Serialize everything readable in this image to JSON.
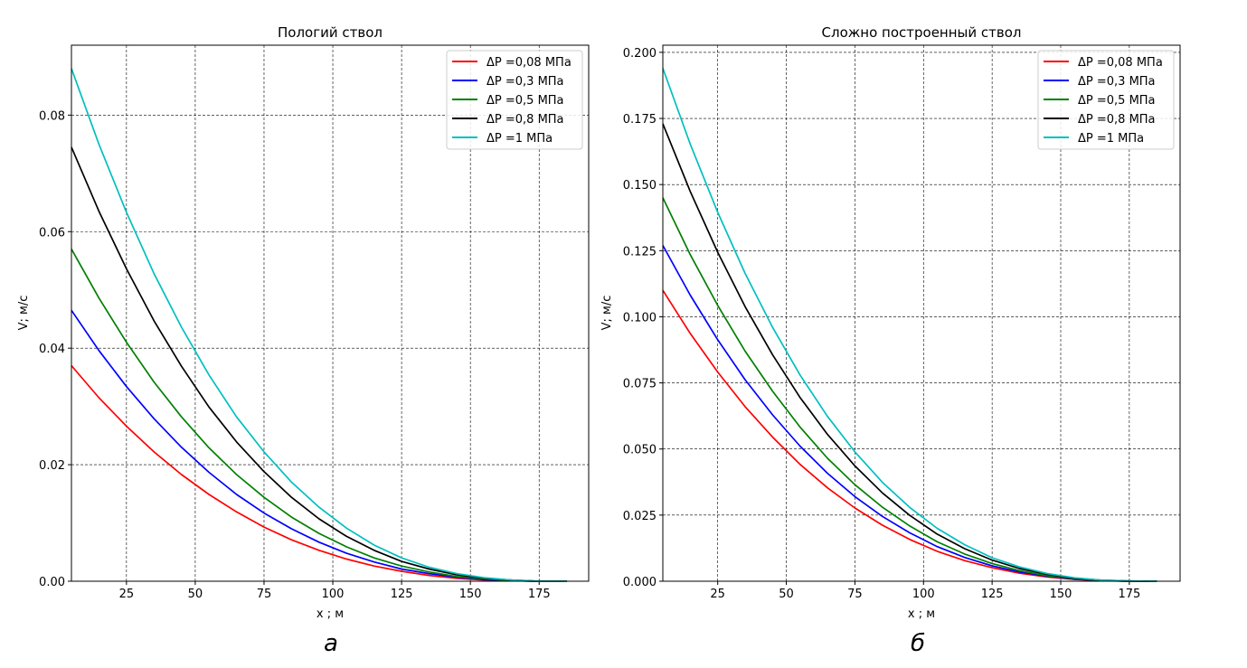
{
  "chart_data": [
    {
      "type": "line",
      "title": "Пологий ствол",
      "xlabel": "x ; м",
      "ylabel": "V; м/с",
      "caption": "а",
      "xlim": [
        5,
        193
      ],
      "ylim": [
        0,
        0.092
      ],
      "xticks": [
        25,
        50,
        75,
        100,
        125,
        150,
        175
      ],
      "xtick_labels": [
        "25",
        "50",
        "75",
        "100",
        "125",
        "150",
        "175"
      ],
      "yticks": [
        0,
        0.02,
        0.04,
        0.06,
        0.08
      ],
      "ytick_labels": [
        "0.00",
        "0.02",
        "0.04",
        "0.06",
        "0.08"
      ],
      "grid": true,
      "legend_position": "top-right",
      "x": [
        5,
        15,
        25,
        35,
        45,
        55,
        65,
        75,
        85,
        95,
        105,
        115,
        125,
        135,
        145,
        155,
        165,
        175,
        185
      ],
      "series": [
        {
          "name": "ΔP =0,08 МПа",
          "color": "#ff0000",
          "values": [
            0.037,
            0.0315,
            0.0266,
            0.0222,
            0.0183,
            0.0149,
            0.0119,
            0.0093,
            0.0071,
            0.0053,
            0.0038,
            0.0026,
            0.0017,
            0.001,
            0.0005,
            0.0002,
            0.0001,
            0,
            0
          ]
        },
        {
          "name": "ΔP =0,3 МПа",
          "color": "#0000ff",
          "values": [
            0.0465,
            0.0396,
            0.0334,
            0.0279,
            0.023,
            0.0187,
            0.0149,
            0.0117,
            0.009,
            0.0067,
            0.0048,
            0.0033,
            0.0021,
            0.0013,
            0.0007,
            0.0003,
            0.0001,
            0,
            0
          ]
        },
        {
          "name": "ΔP =0,5 МПа",
          "color": "#008000",
          "values": [
            0.057,
            0.0486,
            0.041,
            0.0342,
            0.0282,
            0.0229,
            0.0183,
            0.0144,
            0.011,
            0.0082,
            0.0059,
            0.004,
            0.0026,
            0.0016,
            0.0008,
            0.0004,
            0.0001,
            0,
            0
          ]
        },
        {
          "name": "ΔP =0,8 МПа",
          "color": "#000000",
          "values": [
            0.0745,
            0.0635,
            0.0536,
            0.0447,
            0.0369,
            0.0299,
            0.0239,
            0.0188,
            0.0144,
            0.0107,
            0.0077,
            0.0053,
            0.0034,
            0.0021,
            0.0011,
            0.0005,
            0.0002,
            0,
            0
          ]
        },
        {
          "name": "ΔP =1 МПа",
          "color": "#00bfbf",
          "values": [
            0.088,
            0.075,
            0.0633,
            0.0528,
            0.0436,
            0.0354,
            0.0282,
            0.0222,
            0.017,
            0.0127,
            0.0091,
            0.0062,
            0.004,
            0.0024,
            0.0013,
            0.0006,
            0.0002,
            0,
            0
          ]
        }
      ]
    },
    {
      "type": "line",
      "title": "Сложно построенный ствол",
      "xlabel": "x ; м",
      "ylabel": "V; м/с",
      "caption": "б",
      "xlim": [
        5,
        193.5
      ],
      "ylim": [
        0,
        0.2027
      ],
      "xticks": [
        25,
        50,
        75,
        100,
        125,
        150,
        175
      ],
      "xtick_labels": [
        "25",
        "50",
        "75",
        "100",
        "125",
        "150",
        "175"
      ],
      "yticks": [
        0,
        0.025,
        0.05,
        0.075,
        0.1,
        0.125,
        0.15,
        0.175,
        0.2
      ],
      "ytick_labels": [
        "0.000",
        "0.025",
        "0.050",
        "0.075",
        "0.100",
        "0.125",
        "0.150",
        "0.175",
        "0.200"
      ],
      "grid": true,
      "legend_position": "top-right",
      "x": [
        5,
        15,
        25,
        35,
        45,
        55,
        65,
        75,
        85,
        95,
        105,
        115,
        125,
        135,
        145,
        155,
        165,
        175,
        185
      ],
      "series": [
        {
          "name": "ΔP =0,08 МПа",
          "color": "#ff0000",
          "values": [
            0.11,
            0.0937,
            0.0791,
            0.066,
            0.0545,
            0.0442,
            0.0353,
            0.0277,
            0.0212,
            0.0158,
            0.0113,
            0.0078,
            0.0051,
            0.003,
            0.0016,
            0.0007,
            0.0002,
            0,
            0
          ]
        },
        {
          "name": "ΔP =0,3 МПа",
          "color": "#0000ff",
          "values": [
            0.127,
            0.1082,
            0.0913,
            0.0762,
            0.0629,
            0.0511,
            0.0408,
            0.032,
            0.0245,
            0.0183,
            0.0131,
            0.009,
            0.0058,
            0.0035,
            0.0019,
            0.0008,
            0.0003,
            0,
            0
          ]
        },
        {
          "name": "ΔP =0,5 МПа",
          "color": "#008000",
          "values": [
            0.145,
            0.1235,
            0.1043,
            0.087,
            0.0718,
            0.0583,
            0.0465,
            0.0365,
            0.028,
            0.0209,
            0.0149,
            0.0103,
            0.0067,
            0.004,
            0.0021,
            0.001,
            0.0003,
            0,
            0
          ]
        },
        {
          "name": "ΔP =0,8 МПа",
          "color": "#000000",
          "values": [
            0.173,
            0.1474,
            0.1244,
            0.1038,
            0.0856,
            0.0695,
            0.0555,
            0.0436,
            0.0334,
            0.0249,
            0.0178,
            0.0123,
            0.008,
            0.0048,
            0.0026,
            0.0011,
            0.0004,
            0.0001,
            0
          ]
        },
        {
          "name": "ΔP =1 МПа",
          "color": "#00bfbf",
          "values": [
            0.194,
            0.1653,
            0.1395,
            0.1164,
            0.096,
            0.078,
            0.0623,
            0.0489,
            0.0374,
            0.0279,
            0.02,
            0.0138,
            0.0089,
            0.0054,
            0.0029,
            0.0013,
            0.0004,
            0.0001,
            0
          ]
        }
      ]
    }
  ]
}
